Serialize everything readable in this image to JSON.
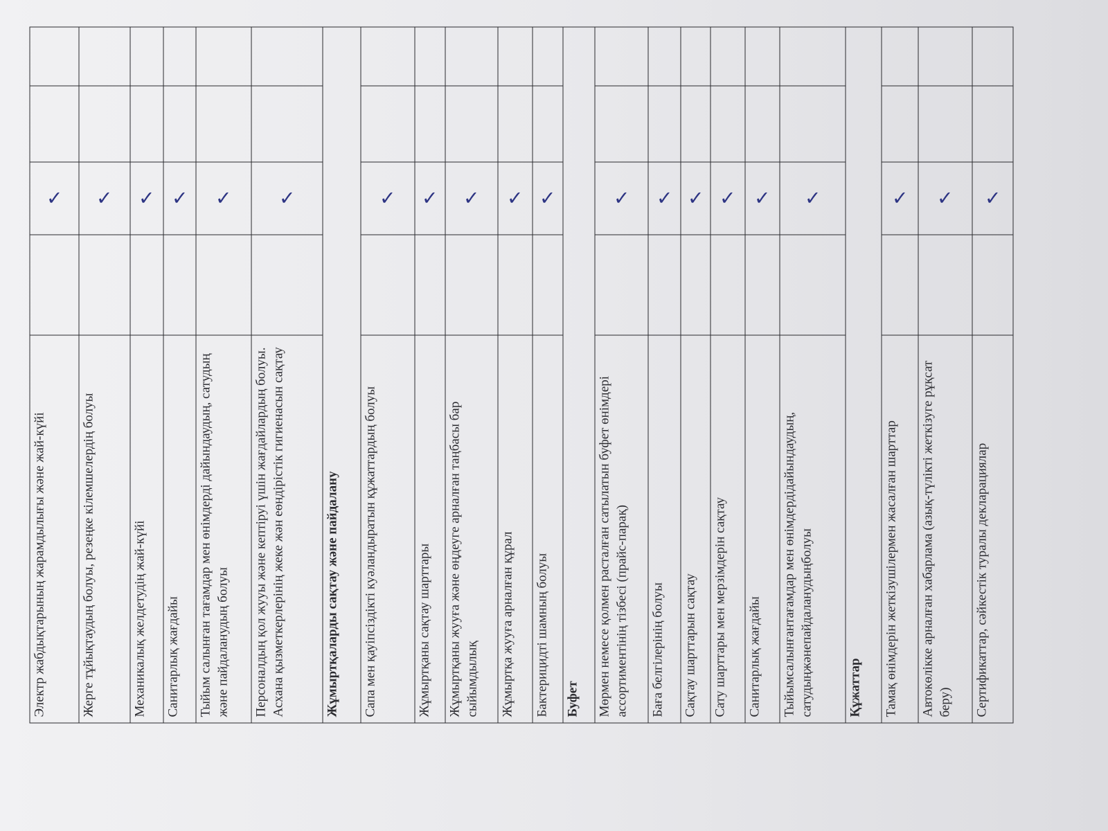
{
  "check_color": "#2d3483",
  "check_mark_icon": "handwritten-check",
  "rows": [
    {
      "type": "item",
      "text": "Электр жабдықтарының жарамдылығы және жай-күйі",
      "checked": true
    },
    {
      "type": "item",
      "text": "Жерге тұйықтаудың болуы, резеңке кілемшелердің болуы",
      "checked": true
    },
    {
      "type": "item",
      "text": "Механикалық желдетудің жай-күйі",
      "checked": true
    },
    {
      "type": "item",
      "text": "Санитарлық жағдайы",
      "checked": true
    },
    {
      "type": "item",
      "text": "Тыйым салынған тағамдар мен өнімдерді дайындаудың, сатудың және пайдаланудың болуы",
      "checked": true
    },
    {
      "type": "item",
      "text": "Персоналдың қол жууы және кептіруі үшін жағдайлардың болуы. Асхана қызметкерлерінің жеке жән еөндірістік гигиенасын сақтау",
      "checked": true
    },
    {
      "type": "section",
      "text": "Жұмыртқаларды сақтау және пайдалану"
    },
    {
      "type": "item",
      "text": "Сапа мен қауіпсіздікті куәландыратын құжаттардың болуы",
      "checked": true
    },
    {
      "type": "item",
      "text": "Жұмыртқаны сақтау шарттары",
      "checked": true
    },
    {
      "type": "item",
      "text": "Жұмыртқаны жууға және өңдеуге арналған таңбасы бар сыйымдылық",
      "checked": true
    },
    {
      "type": "item",
      "text": "Жұмыртқа жууға арналған құрал",
      "checked": true
    },
    {
      "type": "item",
      "text": "Бактерицидті шамның болуы",
      "checked": true
    },
    {
      "type": "section",
      "text": "Буфет"
    },
    {
      "type": "item",
      "text": "Мөрмен немесе қолмен расталған сатылатын буфет өнімдері ассортиментінің тізбесі (прайс-парақ)",
      "checked": true
    },
    {
      "type": "item",
      "text": "Баға белгілерінің болуы",
      "checked": true
    },
    {
      "type": "item",
      "text": "Сақтау шарттарын сақтау",
      "checked": true
    },
    {
      "type": "item",
      "text": "Сату шарттары мен мерзімдерін сақтау",
      "checked": true
    },
    {
      "type": "item",
      "text": "Санитарлық жағдайы",
      "checked": true
    },
    {
      "type": "item",
      "text": "Тыйымсалынғантағамдар мен өнімдердідайындаудың, сатудыңжәнепайдаланудыңболуы",
      "checked": true
    },
    {
      "type": "section",
      "text": "Құжаттар"
    },
    {
      "type": "item",
      "text": "Тамақ өнімдерін жеткізушілермен жасалған шарттар",
      "checked": true
    },
    {
      "type": "item",
      "text": "Автокөлікке арналған хабарлама (азық-түлікті жеткізуге рұқсат беру)",
      "checked": true
    },
    {
      "type": "item",
      "text": "Сертификаттар, сәйкестік туралы декларациялар",
      "checked": true
    }
  ]
}
